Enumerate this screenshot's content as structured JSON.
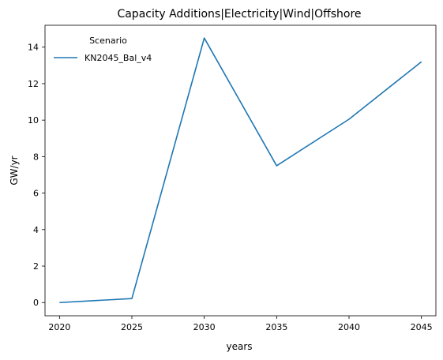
{
  "chart_data": {
    "type": "line",
    "title": "Capacity Additions|Electricity|Wind|Offshore",
    "xlabel": "years",
    "ylabel": "GW/yr",
    "x": [
      2020,
      2025,
      2030,
      2035,
      2040,
      2045
    ],
    "xlim": [
      2019,
      2046
    ],
    "ylim": [
      -0.725,
      15.2
    ],
    "xticks": [
      2020,
      2025,
      2030,
      2035,
      2040,
      2045
    ],
    "yticks": [
      0,
      2,
      4,
      6,
      8,
      10,
      12,
      14
    ],
    "grid": false,
    "legend": {
      "title": "Scenario",
      "placement": "top-left"
    },
    "series": [
      {
        "name": "KN2045_Bal_v4",
        "color": "#1f77b4",
        "values": [
          0.0,
          0.22,
          14.5,
          7.5,
          10.05,
          13.2
        ]
      }
    ]
  }
}
